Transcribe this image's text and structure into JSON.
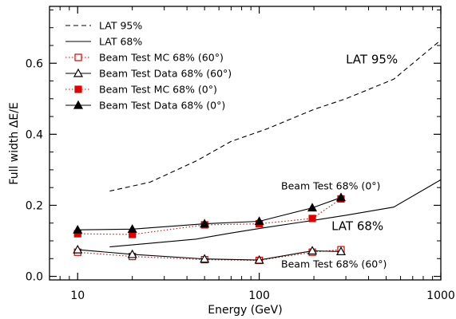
{
  "chart_data": {
    "type": "line",
    "xlabel": "Energy (GeV)",
    "ylabel": "Full width ΔE/E",
    "xscale": "log",
    "xlim": [
      7,
      1000
    ],
    "ylim": [
      -0.01,
      0.76
    ],
    "x_ticks": [
      10,
      100,
      1000
    ],
    "x_tick_labels": [
      "10",
      "100",
      "1000"
    ],
    "y_ticks": [
      0.0,
      0.2,
      0.4,
      0.6
    ],
    "y_tick_labels": [
      "0.0",
      "0.2",
      "0.4",
      "0.6"
    ],
    "grid": false,
    "legend_position": "top-left",
    "series": [
      {
        "name": "LAT 95%",
        "style": "dashed",
        "color": "#000000",
        "marker": "none",
        "x": [
          15,
          25,
          45,
          70,
          110,
          200,
          300,
          550,
          1000
        ],
        "y": [
          0.24,
          0.265,
          0.325,
          0.38,
          0.415,
          0.47,
          0.5,
          0.555,
          0.665
        ]
      },
      {
        "name": "LAT 68%",
        "style": "solid",
        "color": "#000000",
        "marker": "none",
        "x": [
          15,
          25,
          45,
          70,
          110,
          200,
          300,
          550,
          1000
        ],
        "y": [
          0.083,
          0.093,
          0.105,
          0.122,
          0.138,
          0.158,
          0.172,
          0.195,
          0.272
        ]
      },
      {
        "name": "Beam Test MC 68% (60°)",
        "style": "dotted",
        "color": "#e00000",
        "marker": "open-square",
        "x": [
          10,
          20,
          50,
          100,
          196,
          282
        ],
        "y": [
          0.068,
          0.056,
          0.047,
          0.045,
          0.068,
          0.075
        ]
      },
      {
        "name": "Beam Test Data 68% (60°)",
        "style": "solid",
        "color": "#000000",
        "marker": "open-triangle",
        "x": [
          10,
          20,
          50,
          100,
          196,
          282
        ],
        "y": [
          0.075,
          0.062,
          0.049,
          0.046,
          0.072,
          0.07
        ]
      },
      {
        "name": "Beam Test MC 68% (0°)",
        "style": "dotted",
        "color": "#e00000",
        "marker": "filled-square",
        "x": [
          10,
          20,
          50,
          100,
          196,
          282
        ],
        "y": [
          0.12,
          0.118,
          0.145,
          0.148,
          0.163,
          0.218
        ]
      },
      {
        "name": "Beam Test Data 68% (0°)",
        "style": "solid",
        "color": "#000000",
        "marker": "filled-triangle",
        "x": [
          10,
          20,
          50,
          100,
          196,
          282
        ],
        "y": [
          0.131,
          0.133,
          0.148,
          0.155,
          0.193,
          0.222
        ]
      }
    ],
    "annotations": [
      {
        "text": "LAT 95%",
        "x": 300,
        "y": 0.6
      },
      {
        "text": "Beam Test 68% (0°)",
        "x": 132,
        "y": 0.245
      },
      {
        "text": "LAT 68%",
        "x": 250,
        "y": 0.13
      },
      {
        "text": "Beam Test 68% (60°)",
        "x": 132,
        "y": 0.025
      }
    ]
  }
}
